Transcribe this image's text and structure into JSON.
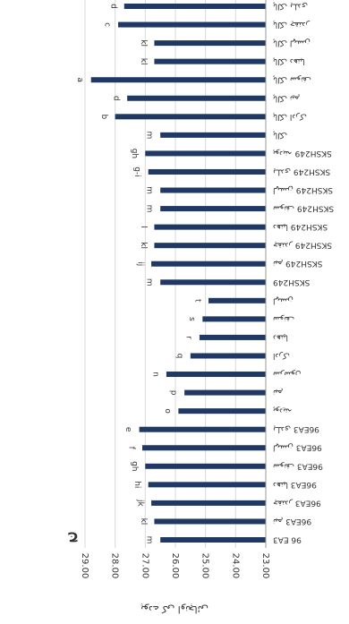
{
  "chart_data": {
    "type": "bar",
    "orientation": "horizontal-reversed",
    "title": "ج",
    "y_label": "پودے کی اونچائی",
    "categories": [
      "96 EA3",
      "96EA3 نیم",
      "96EA3 چقندر",
      "96EA3 دھنیا",
      "96EA3 سونف",
      "96EA3 لہسن",
      "96EA3 ہلدی",
      "پودینہ",
      "نیم",
      "سرسوں",
      "ادرک",
      "دھنیا",
      "سونف",
      "لہسن",
      "SKSH249",
      "SKSH249 نیم",
      "SKSH249 چقندر",
      "SKSH249 دھنیا",
      "SKSH249 سونف",
      "SKSH249 لہسن",
      "SKSH249 ہلدی",
      "SKSH249 پودینہ",
      "پالک",
      "پالک ادرک",
      "پالک نیم",
      "پالک سونف",
      "پالک دھنیا",
      "پالک لہسن",
      "پالک چقندر",
      "پالک ہلدی"
    ],
    "values": [
      26.5,
      26.7,
      26.8,
      26.9,
      27.0,
      27.1,
      27.2,
      25.9,
      25.7,
      26.3,
      25.5,
      25.2,
      25.1,
      24.9,
      26.5,
      26.8,
      26.7,
      26.7,
      26.5,
      26.5,
      26.9,
      27.0,
      26.5,
      28.0,
      27.6,
      28.8,
      26.7,
      26.7,
      27.9,
      27.7
    ],
    "letters": [
      "m",
      "kl",
      "jk",
      "hi",
      "gh",
      "f",
      "e",
      "o",
      "p",
      "n",
      "q",
      "r",
      "s",
      "t",
      "m",
      "ij",
      "kl",
      "l",
      "m",
      "m",
      "g-i",
      "gh",
      "m",
      "b",
      "d",
      "a",
      "kl",
      "kl",
      "c",
      "d"
    ],
    "color": "#1f3864",
    "xlim": [
      23,
      29
    ],
    "xticks": [
      {
        "value": 23,
        "label": "23.00"
      },
      {
        "value": 24,
        "label": "24.00"
      },
      {
        "value": 25,
        "label": "25.00"
      },
      {
        "value": 26,
        "label": "26.00"
      },
      {
        "value": 27,
        "label": "27.00"
      },
      {
        "value": 28,
        "label": "28.00"
      },
      {
        "value": 29,
        "label": "29.00"
      }
    ],
    "grid": true
  }
}
